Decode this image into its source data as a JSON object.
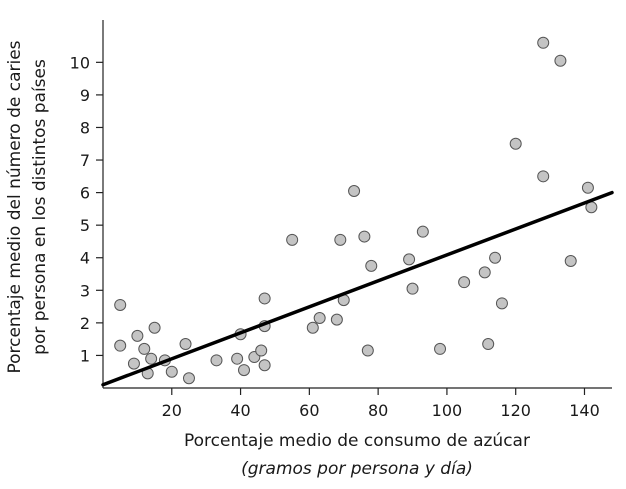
{
  "chart_data": {
    "type": "scatter",
    "xlabel": [
      "Porcentaje medio de consumo de azúcar",
      "(gramos por persona y día)"
    ],
    "ylabel": [
      "Porcentaje medio del número de caries",
      "por persona en los distintos países"
    ],
    "xlim": [
      0,
      148
    ],
    "ylim": [
      0,
      11.3
    ],
    "xticks": [
      20,
      40,
      60,
      80,
      100,
      120,
      140
    ],
    "yticks": [
      1,
      2,
      3,
      4,
      5,
      6,
      7,
      8,
      9,
      10
    ],
    "grid": false,
    "trendline": {
      "x": [
        0,
        148
      ],
      "y": [
        0.1,
        6.0
      ]
    },
    "point_color": "#c4c4c4",
    "points": [
      {
        "x": 5,
        "y": 2.55
      },
      {
        "x": 5,
        "y": 1.3
      },
      {
        "x": 9,
        "y": 0.75
      },
      {
        "x": 10,
        "y": 1.6
      },
      {
        "x": 12,
        "y": 1.2
      },
      {
        "x": 13,
        "y": 0.45
      },
      {
        "x": 14,
        "y": 0.9
      },
      {
        "x": 15,
        "y": 1.85
      },
      {
        "x": 18,
        "y": 0.85
      },
      {
        "x": 20,
        "y": 0.5
      },
      {
        "x": 24,
        "y": 1.35
      },
      {
        "x": 25,
        "y": 0.3
      },
      {
        "x": 33,
        "y": 0.85
      },
      {
        "x": 39,
        "y": 0.9
      },
      {
        "x": 40,
        "y": 1.65
      },
      {
        "x": 41,
        "y": 0.55
      },
      {
        "x": 44,
        "y": 0.95
      },
      {
        "x": 46,
        "y": 1.15
      },
      {
        "x": 47,
        "y": 0.7
      },
      {
        "x": 47,
        "y": 1.9
      },
      {
        "x": 47,
        "y": 2.75
      },
      {
        "x": 55,
        "y": 4.55
      },
      {
        "x": 61,
        "y": 1.85
      },
      {
        "x": 63,
        "y": 2.15
      },
      {
        "x": 68,
        "y": 2.1
      },
      {
        "x": 69,
        "y": 4.55
      },
      {
        "x": 70,
        "y": 2.7
      },
      {
        "x": 73,
        "y": 6.05
      },
      {
        "x": 76,
        "y": 4.65
      },
      {
        "x": 77,
        "y": 1.15
      },
      {
        "x": 78,
        "y": 3.75
      },
      {
        "x": 89,
        "y": 3.95
      },
      {
        "x": 90,
        "y": 3.05
      },
      {
        "x": 93,
        "y": 4.8
      },
      {
        "x": 98,
        "y": 1.2
      },
      {
        "x": 105,
        "y": 3.25
      },
      {
        "x": 111,
        "y": 3.55
      },
      {
        "x": 112,
        "y": 1.35
      },
      {
        "x": 114,
        "y": 4.0
      },
      {
        "x": 116,
        "y": 2.6
      },
      {
        "x": 120,
        "y": 7.5
      },
      {
        "x": 128,
        "y": 10.6
      },
      {
        "x": 128,
        "y": 6.5
      },
      {
        "x": 133,
        "y": 10.05
      },
      {
        "x": 136,
        "y": 3.9
      },
      {
        "x": 141,
        "y": 6.15
      },
      {
        "x": 142,
        "y": 5.55
      }
    ]
  }
}
